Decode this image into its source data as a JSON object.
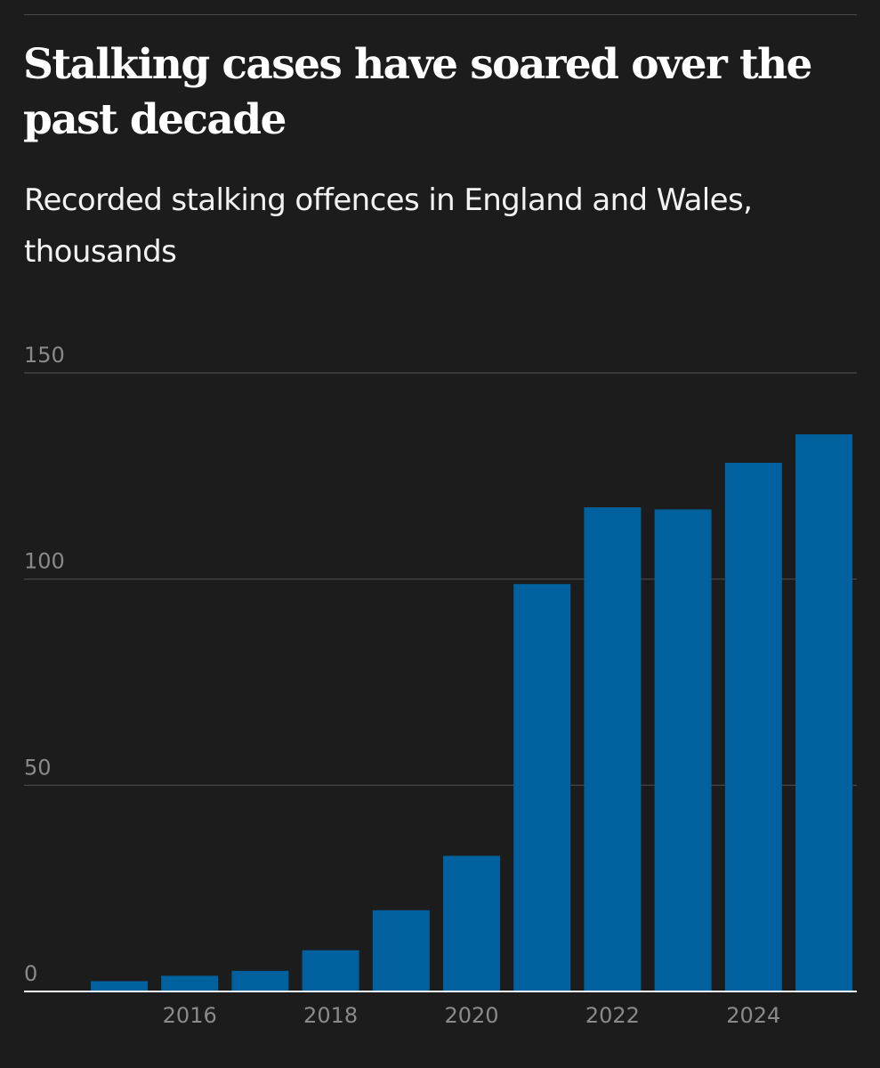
{
  "title": "Stalking cases have soared over the past decade",
  "subtitle": "Recorded stalking offences in England and Wales, thousands",
  "colors": {
    "background": "#1c1c1c",
    "bar": "#00619e",
    "grid": "#4a4a4a",
    "tick_text": "#8a8a8a",
    "baseline": "#ffffff"
  },
  "chart_data": {
    "type": "bar",
    "title": "Stalking cases have soared over the past decade",
    "subtitle": "Recorded stalking offences in England and Wales, thousands",
    "x": [
      2015,
      2016,
      2017,
      2018,
      2019,
      2020,
      2021,
      2022,
      2023,
      2024,
      2025
    ],
    "values": [
      2.5,
      3.8,
      5.0,
      10.0,
      19.7,
      32.9,
      98.8,
      117.4,
      116.9,
      128.2,
      135.1
    ],
    "y_ticks": [
      "0",
      "50",
      "100",
      "150"
    ],
    "y_tick_values": [
      0,
      50,
      100,
      150
    ],
    "x_ticks": [
      "2016",
      "2018",
      "2020",
      "2022",
      "2024"
    ],
    "x_tick_values": [
      2016,
      2018,
      2020,
      2022,
      2024
    ],
    "ylim": [
      0,
      150
    ],
    "xlabel": "",
    "ylabel": "",
    "grid": true,
    "legend": "none"
  }
}
